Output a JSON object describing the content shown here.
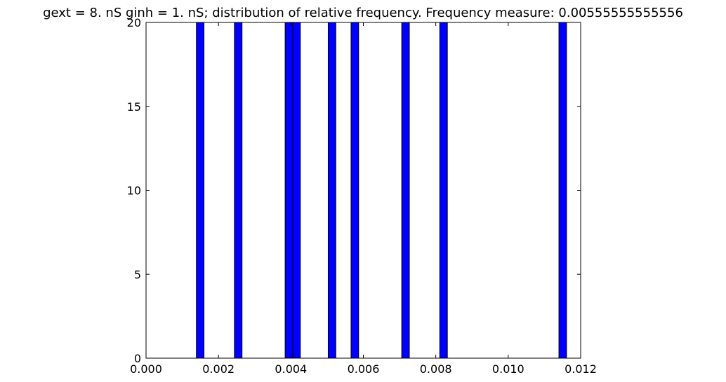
{
  "chart_data": {
    "type": "bar",
    "title": "gext = 8. nS ginh = 1. nS; distribution of relative frequency. Frequency measure: 0.00555555555556",
    "xlabel": "",
    "ylabel": "",
    "xlim": [
      0.0,
      0.012
    ],
    "ylim": [
      0,
      20
    ],
    "xticks": [
      {
        "value": 0.0,
        "label": "0.000"
      },
      {
        "value": 0.002,
        "label": "0.002"
      },
      {
        "value": 0.004,
        "label": "0.004"
      },
      {
        "value": 0.006,
        "label": "0.006"
      },
      {
        "value": 0.008,
        "label": "0.008"
      },
      {
        "value": 0.01,
        "label": "0.010"
      },
      {
        "value": 0.012,
        "label": "0.012"
      }
    ],
    "yticks": [
      {
        "value": 0,
        "label": "0"
      },
      {
        "value": 5,
        "label": "5"
      },
      {
        "value": 10,
        "label": "10"
      },
      {
        "value": 15,
        "label": "15"
      },
      {
        "value": 20,
        "label": "20"
      }
    ],
    "bin_width": 0.00021,
    "bars": [
      {
        "x_start": 0.00139,
        "value": 20
      },
      {
        "x_start": 0.00244,
        "value": 20
      },
      {
        "x_start": 0.00384,
        "value": 20
      },
      {
        "x_start": 0.00405,
        "value": 20
      },
      {
        "x_start": 0.00503,
        "value": 20
      },
      {
        "x_start": 0.00566,
        "value": 20
      },
      {
        "x_start": 0.00706,
        "value": 20
      },
      {
        "x_start": 0.00811,
        "value": 20
      },
      {
        "x_start": 0.0114,
        "value": 20
      }
    ],
    "bar_color": "#0000ff",
    "grid": false
  }
}
